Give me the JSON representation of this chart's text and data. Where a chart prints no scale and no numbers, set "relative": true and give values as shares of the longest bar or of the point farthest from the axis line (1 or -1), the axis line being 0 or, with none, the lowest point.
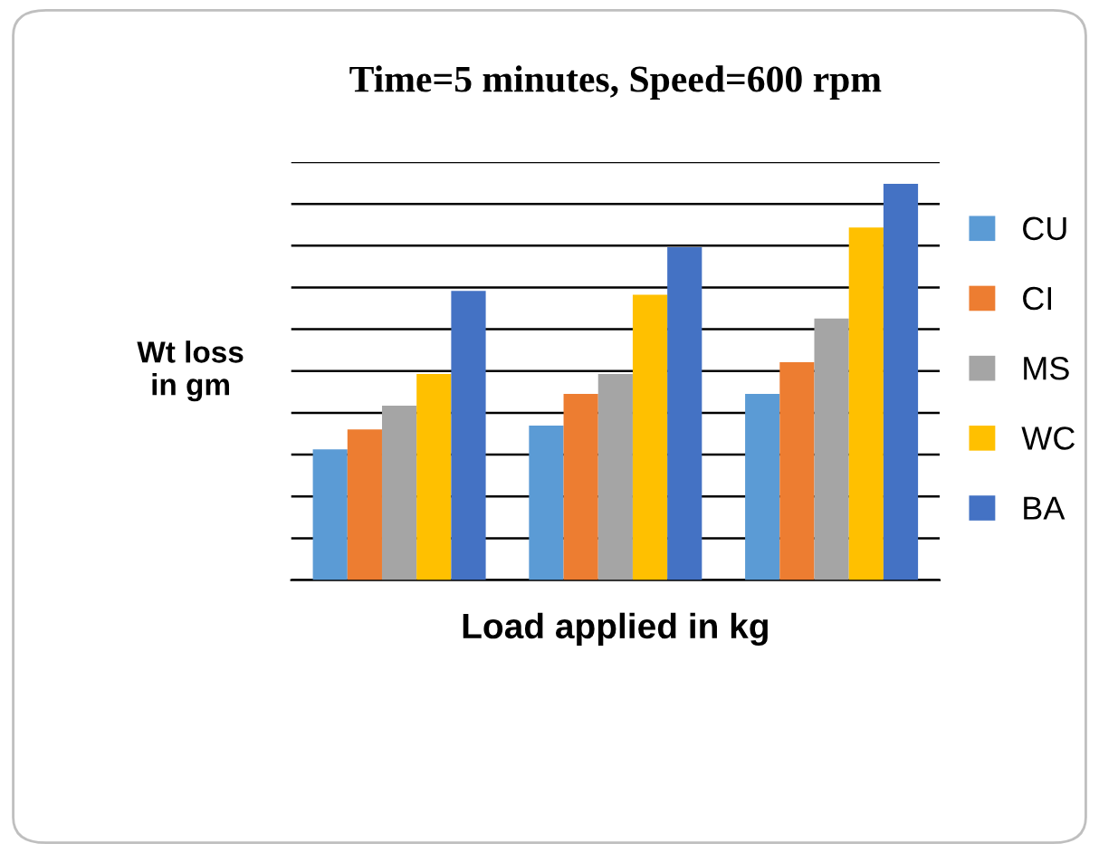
{
  "chart_data": {
    "type": "bar",
    "title": "Time=5 minutes, Speed=600 rpm",
    "xlabel": "Load applied in kg",
    "ylabel": "Wt loss\nin gm",
    "categories": [
      null,
      null,
      null
    ],
    "relative": true,
    "grid": "y",
    "legend": "right",
    "series": [
      {
        "name": "CU",
        "color": "#5b9bd5",
        "values": [
          0.33,
          0.39,
          0.47
        ]
      },
      {
        "name": "CI",
        "color": "#ed7d31",
        "values": [
          0.38,
          0.47,
          0.55
        ]
      },
      {
        "name": "MS",
        "color": "#a5a5a5",
        "values": [
          0.44,
          0.52,
          0.66
        ]
      },
      {
        "name": "WC",
        "color": "#ffc000",
        "values": [
          0.52,
          0.72,
          0.89
        ]
      },
      {
        "name": "BA",
        "color": "#4472c4",
        "values": [
          0.73,
          0.84,
          1.0
        ]
      }
    ]
  }
}
